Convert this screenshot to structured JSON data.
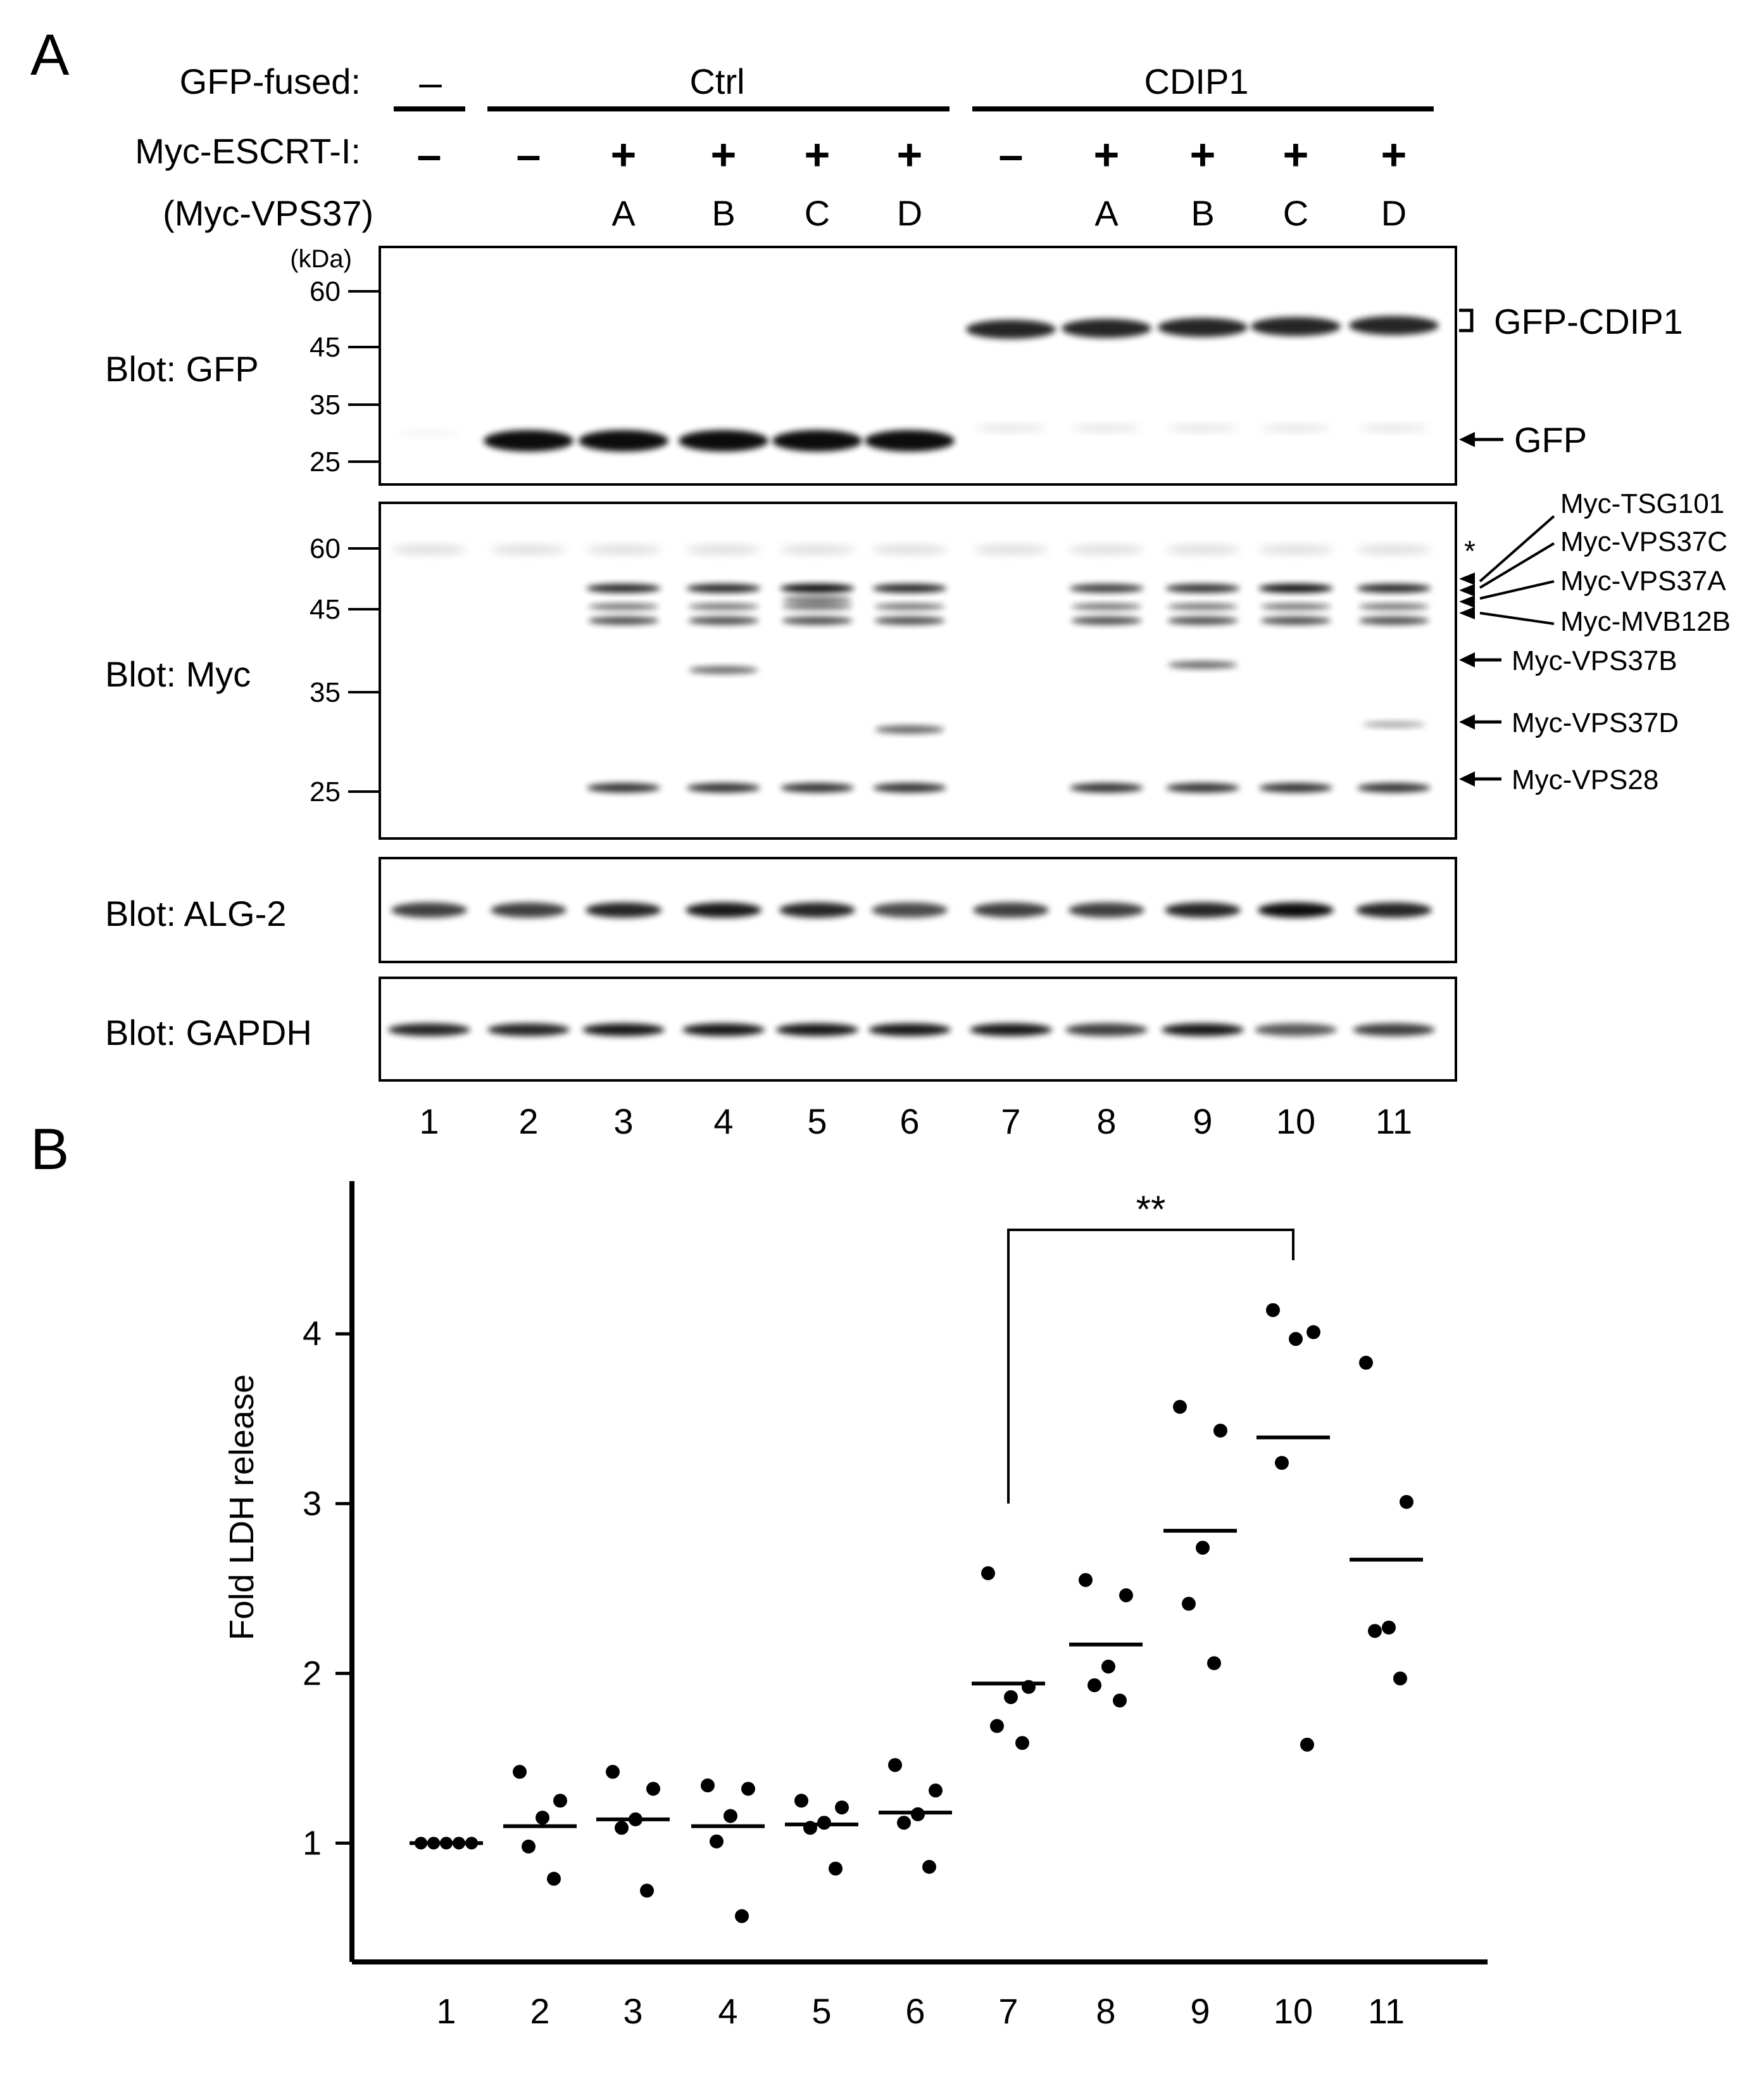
{
  "panel_a": {
    "letter": "A",
    "row_labels": {
      "gfp_fused": "GFP-fused:",
      "escrt": "Myc-ESCRT-I:",
      "vps37": "(Myc-VPS37)",
      "kda": "(kDa)"
    },
    "groups": [
      "–",
      "Ctrl",
      "CDIP1"
    ],
    "escrt_signs": [
      "–",
      "–",
      "+",
      "+",
      "+",
      "+",
      "–",
      "+",
      "+",
      "+",
      "+"
    ],
    "vps37_letters": [
      "",
      "",
      "A",
      "B",
      "C",
      "D",
      "",
      "A",
      "B",
      "C",
      "D"
    ],
    "blots": [
      {
        "label": "Blot: GFP",
        "markers": [
          "60",
          "45",
          "35",
          "25"
        ]
      },
      {
        "label": "Blot: Myc",
        "markers": [
          "60",
          "45",
          "35",
          "25"
        ]
      },
      {
        "label": "Blot: ALG-2",
        "markers": []
      },
      {
        "label": "Blot: GAPDH",
        "markers": []
      }
    ],
    "gfp_annotations": [
      "GFP-CDIP1",
      "GFP"
    ],
    "myc_annotations": [
      "Myc-TSG101",
      "Myc-VPS37C",
      "Myc-VPS37A",
      "Myc-MVB12B",
      "Myc-VPS37B",
      "Myc-VPS37D",
      "Myc-VPS28"
    ],
    "asterisk": "*",
    "lane_numbers": [
      "1",
      "2",
      "3",
      "4",
      "5",
      "6",
      "7",
      "8",
      "9",
      "10",
      "11"
    ]
  },
  "panel_b": {
    "letter": "B",
    "significance": "**"
  },
  "chart_data": {
    "type": "scatter",
    "ylabel": "Fold LDH release",
    "xlabel": "",
    "categories": [
      "1",
      "2",
      "3",
      "4",
      "5",
      "6",
      "7",
      "8",
      "9",
      "10",
      "11"
    ],
    "yticks": [
      "1",
      "2",
      "3",
      "4"
    ],
    "ylim": [
      0.3,
      4.9
    ],
    "points": [
      [
        1.0,
        1.0,
        1.0,
        1.0,
        1.0
      ],
      [
        1.42,
        1.25,
        1.15,
        0.98,
        0.79
      ],
      [
        1.42,
        1.32,
        1.14,
        1.09,
        0.72
      ],
      [
        1.34,
        1.32,
        1.16,
        1.01,
        0.57
      ],
      [
        1.25,
        1.21,
        1.12,
        1.09,
        0.85
      ],
      [
        1.46,
        1.31,
        1.17,
        1.12,
        0.86
      ],
      [
        2.59,
        1.92,
        1.86,
        1.69,
        1.59
      ],
      [
        2.55,
        2.46,
        2.04,
        1.93,
        1.84
      ],
      [
        3.57,
        3.43,
        2.74,
        2.41,
        2.06
      ],
      [
        4.14,
        4.01,
        3.97,
        3.24,
        1.58
      ],
      [
        3.83,
        3.01,
        2.27,
        2.25,
        1.97
      ]
    ],
    "means": [
      1.0,
      1.1,
      1.14,
      1.1,
      1.11,
      1.18,
      1.94,
      2.17,
      2.84,
      3.39,
      2.67
    ],
    "significance_pair": [
      "7",
      "10"
    ],
    "grid": false,
    "legend": "none"
  }
}
